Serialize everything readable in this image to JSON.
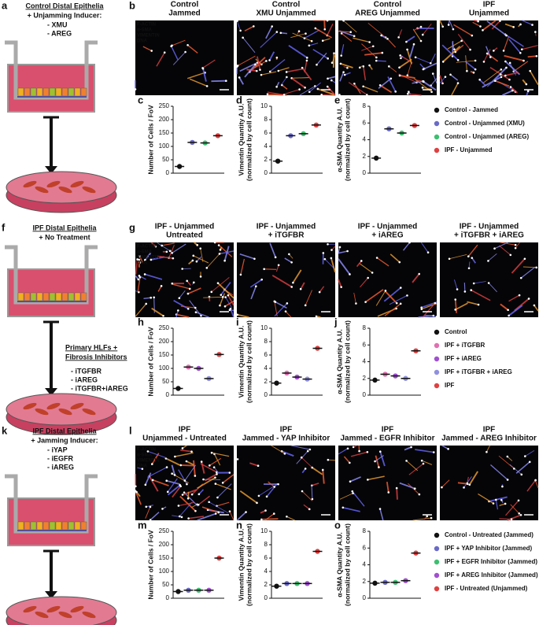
{
  "rows": [
    {
      "schematic": {
        "letter": "a",
        "title": "Control Distal Epithelia",
        "title_color": "#111111",
        "subtitle": "+ Unjamming Inducer:",
        "items": [
          {
            "text": "- XMU",
            "color": "#5050c0"
          },
          {
            "text": "- AREG",
            "color": "#30b060"
          }
        ]
      },
      "images": {
        "letter": "b",
        "stains": [
          {
            "text": "F-ACTIN",
            "color": "#7070ff"
          },
          {
            "text": "α-SMA",
            "color": "#f0d020"
          },
          {
            "text": "VIMENTIN",
            "color": "#ff3030"
          },
          {
            "text": "DNA",
            "color": "#ffffff"
          }
        ],
        "headers": [
          {
            "lines": [
              "Control",
              "Jammed"
            ],
            "color": "#111111"
          },
          {
            "lines": [
              "Control",
              "XMU Unjammed"
            ],
            "color": "#5050c0"
          },
          {
            "lines": [
              "Control",
              "AREG Unjammed"
            ],
            "color": "#30b060"
          },
          {
            "lines": [
              "IPF",
              "Unjammed"
            ],
            "color": "#e03030"
          }
        ]
      },
      "chart_data": [
        {
          "type": "dot",
          "letter": "c",
          "ylabel": [
            "Number of Cells / FoV"
          ],
          "ylim": [
            0,
            250
          ],
          "yticks": [
            0,
            50,
            100,
            150,
            200,
            250
          ],
          "values": [
            25,
            115,
            113,
            140
          ],
          "colors": [
            "#111111",
            "#6a6ac8",
            "#3cc070",
            "#e04040"
          ]
        },
        {
          "type": "dot",
          "letter": "d",
          "ylabel": [
            "Vimentin Quantity A.U.",
            "(normalized by cell count)"
          ],
          "ylim": [
            0,
            10
          ],
          "yticks": [
            0,
            2,
            4,
            6,
            8,
            10
          ],
          "values": [
            1.8,
            5.6,
            5.9,
            7.2
          ],
          "colors": [
            "#111111",
            "#6a6ac8",
            "#3cc070",
            "#e04040"
          ]
        },
        {
          "type": "dot",
          "letter": "e",
          "ylabel": [
            "α-SMA Quantity A.U.",
            "(normalized by cell count)"
          ],
          "ylim": [
            0,
            8
          ],
          "yticks": [
            0,
            2,
            4,
            6,
            8
          ],
          "values": [
            1.8,
            5.3,
            4.8,
            5.7
          ],
          "colors": [
            "#111111",
            "#6a6ac8",
            "#3cc070",
            "#e04040"
          ]
        }
      ],
      "legend": [
        {
          "name": "Control - Jammed",
          "color": "#111111"
        },
        {
          "name": "Control - Unjammed (XMU)",
          "color": "#6a6ac8"
        },
        {
          "name": "Control - Unjammed (AREG)",
          "color": "#3cc070"
        },
        {
          "name": "IPF - Unjammed",
          "color": "#e04040"
        }
      ]
    },
    {
      "schematic": {
        "letter": "f",
        "title": "IPF Distal Epithelia",
        "title_color": "#e03030",
        "subtitle": "+ No Treatment",
        "side": [
          "Primary HLFs +",
          "Fibrosis Inhibitors"
        ],
        "items": [
          {
            "text": "- iTGFBR",
            "color": "#e070b0"
          },
          {
            "text": "- iAREG",
            "color": "#a050d0"
          },
          {
            "text": "- iTGFBR+iAREG",
            "color": "#9090e0"
          }
        ]
      },
      "images": {
        "letter": "g",
        "stains": [
          {
            "text": "F-ACTIN",
            "color": "#7070ff"
          },
          {
            "text": "α-SMA",
            "color": "#f0d020"
          },
          {
            "text": "VIMENTIN",
            "color": "#ff3030"
          },
          {
            "text": "DNA",
            "color": "#ffffff"
          }
        ],
        "headers": [
          {
            "lines": [
              "IPF - Unjammed",
              "Untreated"
            ],
            "color": "#e03030"
          },
          {
            "lines": [
              "IPF - Unjammed",
              "+ iTGFBR"
            ],
            "color": "#e070b0"
          },
          {
            "lines": [
              "IPF - Unjammed",
              "+ iAREG"
            ],
            "color": "#a050d0"
          },
          {
            "lines": [
              "IPF - Unjammed",
              "+ iTGFBR + iAREG"
            ],
            "color": "#9090e0"
          }
        ]
      },
      "chart_data": [
        {
          "type": "dot",
          "letter": "h",
          "ylabel": [
            "Number of Cells / FoV"
          ],
          "ylim": [
            0,
            250
          ],
          "yticks": [
            0,
            50,
            100,
            150,
            200,
            250
          ],
          "values": [
            25,
            105,
            100,
            62,
            152
          ],
          "colors": [
            "#111111",
            "#e070b0",
            "#a050d0",
            "#9090e0",
            "#e04040"
          ]
        },
        {
          "type": "dot",
          "letter": "i",
          "ylabel": [
            "Vimentin Quantity A.U.",
            "(normalized by cell count)"
          ],
          "ylim": [
            0,
            10
          ],
          "yticks": [
            0,
            2,
            4,
            6,
            8,
            10
          ],
          "values": [
            1.8,
            3.3,
            2.7,
            2.4,
            7.0
          ],
          "colors": [
            "#111111",
            "#e070b0",
            "#a050d0",
            "#9090e0",
            "#e04040"
          ]
        },
        {
          "type": "dot",
          "letter": "j",
          "ylabel": [
            "α-SMA Quantity A.U.",
            "(normalized by cell count)"
          ],
          "ylim": [
            0,
            8
          ],
          "yticks": [
            0,
            2,
            4,
            6,
            8
          ],
          "values": [
            1.8,
            2.5,
            2.3,
            2.0,
            5.3
          ],
          "colors": [
            "#111111",
            "#e070b0",
            "#a050d0",
            "#9090e0",
            "#e04040"
          ]
        }
      ],
      "legend": [
        {
          "name": "Control",
          "color": "#111111"
        },
        {
          "name": "IPF + iTGFBR",
          "color": "#e070b0"
        },
        {
          "name": "IPF + iAREG",
          "color": "#a050d0"
        },
        {
          "name": "IPF + iTGFBR + iAREG",
          "color": "#9090e0"
        },
        {
          "name": "IPF",
          "color": "#e04040"
        }
      ]
    },
    {
      "schematic": {
        "letter": "k",
        "title": "IPF Distal Epithelia",
        "title_color": "#e03030",
        "subtitle": "+ Jamming Inducer:",
        "items": [
          {
            "text": "- iYAP",
            "color": "#5050c0"
          },
          {
            "text": "- iEGFR",
            "color": "#30b060"
          },
          {
            "text": "- iAREG",
            "color": "#a050d0"
          }
        ]
      },
      "images": {
        "letter": "l",
        "stains": [
          {
            "text": "F-ACTIN",
            "color": "#7070ff"
          },
          {
            "text": "α-SMA",
            "color": "#f0d020"
          },
          {
            "text": "VIMENTIN",
            "color": "#ff3030"
          },
          {
            "text": "DNA",
            "color": "#ffffff"
          }
        ],
        "headers": [
          {
            "lines": [
              "IPF",
              "Unjammed - Untreated"
            ],
            "color": "#e03030"
          },
          {
            "lines": [
              "IPF",
              "Jammed - YAP Inhibitor"
            ],
            "color": "#5050c0"
          },
          {
            "lines": [
              "IPF",
              "Jammed - EGFR Inhibitor"
            ],
            "color": "#30b060"
          },
          {
            "lines": [
              "IPF",
              "Jammed - AREG Inhibitor"
            ],
            "color": "#a050d0"
          }
        ]
      },
      "chart_data": [
        {
          "type": "dot",
          "letter": "m",
          "ylabel": [
            "Number of Cells / FoV"
          ],
          "ylim": [
            0,
            250
          ],
          "yticks": [
            0,
            50,
            100,
            150,
            200,
            250
          ],
          "values": [
            25,
            30,
            30,
            30,
            150
          ],
          "colors": [
            "#111111",
            "#6a6ac8",
            "#3cc070",
            "#a050d0",
            "#e04040"
          ]
        },
        {
          "type": "dot",
          "letter": "n",
          "ylabel": [
            "Vimentin Quantity A.U.",
            "(normalized by cell count)"
          ],
          "ylim": [
            0,
            10
          ],
          "yticks": [
            0,
            2,
            4,
            6,
            8,
            10
          ],
          "values": [
            1.8,
            2.2,
            2.2,
            2.2,
            7.0
          ],
          "colors": [
            "#111111",
            "#6a6ac8",
            "#3cc070",
            "#a050d0",
            "#e04040"
          ]
        },
        {
          "type": "dot",
          "letter": "o",
          "ylabel": [
            "α-SMA Quantity A.U.",
            "(normalized by cell count)"
          ],
          "ylim": [
            0,
            8
          ],
          "yticks": [
            0,
            2,
            4,
            6,
            8
          ],
          "values": [
            1.8,
            1.9,
            1.9,
            2.1,
            5.4
          ],
          "colors": [
            "#111111",
            "#6a6ac8",
            "#3cc070",
            "#a050d0",
            "#e04040"
          ]
        }
      ],
      "legend": [
        {
          "name": "Control - Untreated (Jammed)",
          "color": "#111111"
        },
        {
          "name": "IPF + YAP Inhibitor (Jammed)",
          "color": "#6a6ac8"
        },
        {
          "name": "IPF + EGFR Inhibitor (Jammed)",
          "color": "#3cc070"
        },
        {
          "name": "IPF + AREG Inhibitor (Jammed)",
          "color": "#a050d0"
        },
        {
          "name": "IPF - Untreated (Unjammed)",
          "color": "#e04040"
        }
      ]
    }
  ]
}
